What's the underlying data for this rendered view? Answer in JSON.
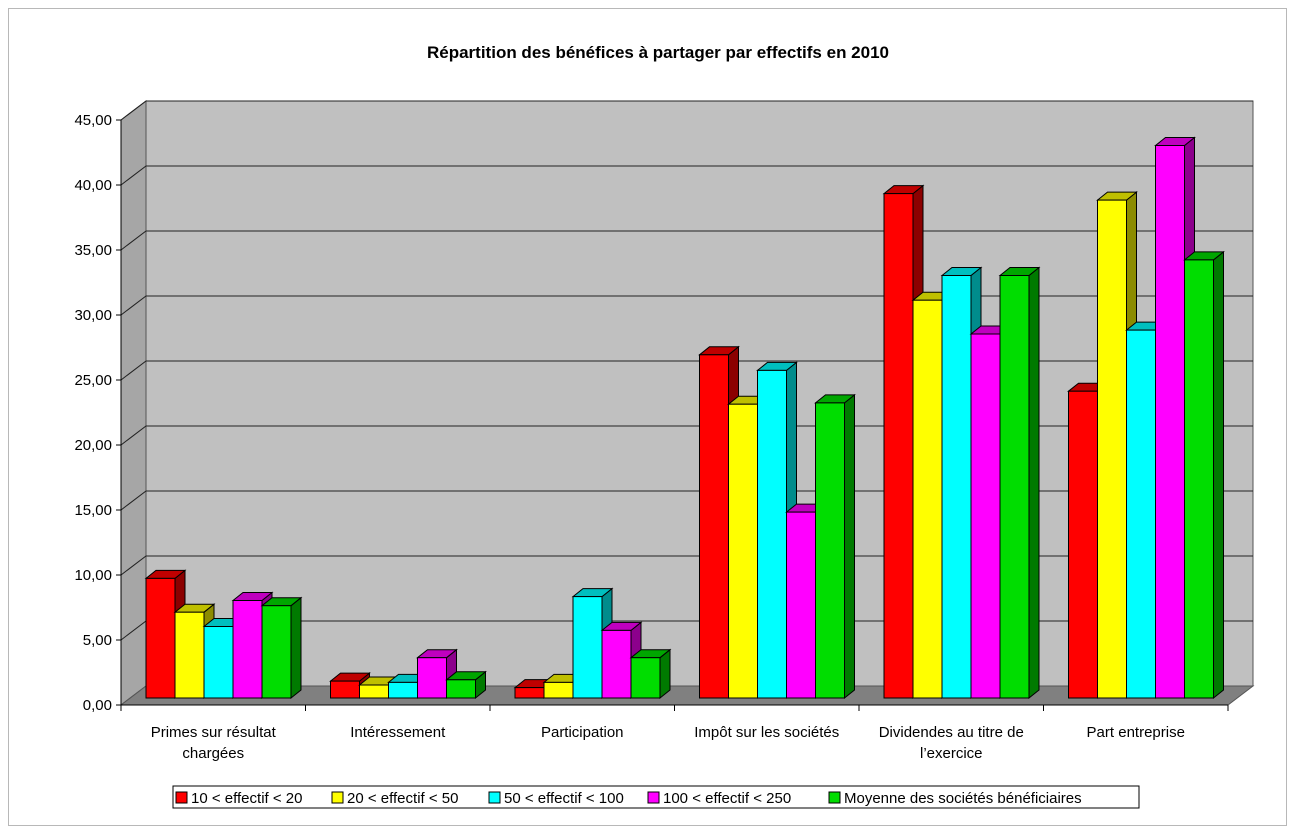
{
  "chart_data": {
    "type": "bar",
    "title": "Répartition des bénéfices à partager par effectifs en 2010",
    "xlabel": "",
    "ylabel": "",
    "ylim": [
      0,
      45
    ],
    "y_ticks": [
      "0,00",
      "5,00",
      "10,00",
      "15,00",
      "20,00",
      "25,00",
      "30,00",
      "35,00",
      "40,00",
      "45,00"
    ],
    "grid": true,
    "legend_position": "bottom",
    "categories": [
      [
        "Primes sur résultat",
        "chargées"
      ],
      [
        "Intéressement"
      ],
      [
        "Participation"
      ],
      [
        "Impôt sur les sociétés"
      ],
      [
        "Dividendes au titre de",
        "l’exercice"
      ],
      [
        "Part entreprise"
      ]
    ],
    "series": [
      {
        "name": "10 < effectif < 20",
        "color": "#ff0000",
        "values": [
          9.2,
          1.3,
          0.8,
          26.4,
          38.8,
          23.6
        ]
      },
      {
        "name": "20 < effectif < 50",
        "color": "#ffff00",
        "values": [
          6.6,
          1.0,
          1.2,
          22.6,
          30.6,
          38.3
        ]
      },
      {
        "name": "50 < effectif < 100",
        "color": "#00ffff",
        "values": [
          5.5,
          1.2,
          7.8,
          25.2,
          32.5,
          28.3
        ]
      },
      {
        "name": "100 < effectif < 250",
        "color": "#ff00ff",
        "values": [
          7.5,
          3.1,
          5.2,
          14.3,
          28.0,
          42.5
        ]
      },
      {
        "name": "Moyenne des sociétés bénéficiaires",
        "color": "#00dd00",
        "values": [
          7.1,
          1.4,
          3.1,
          22.7,
          32.5,
          33.7
        ]
      }
    ]
  }
}
